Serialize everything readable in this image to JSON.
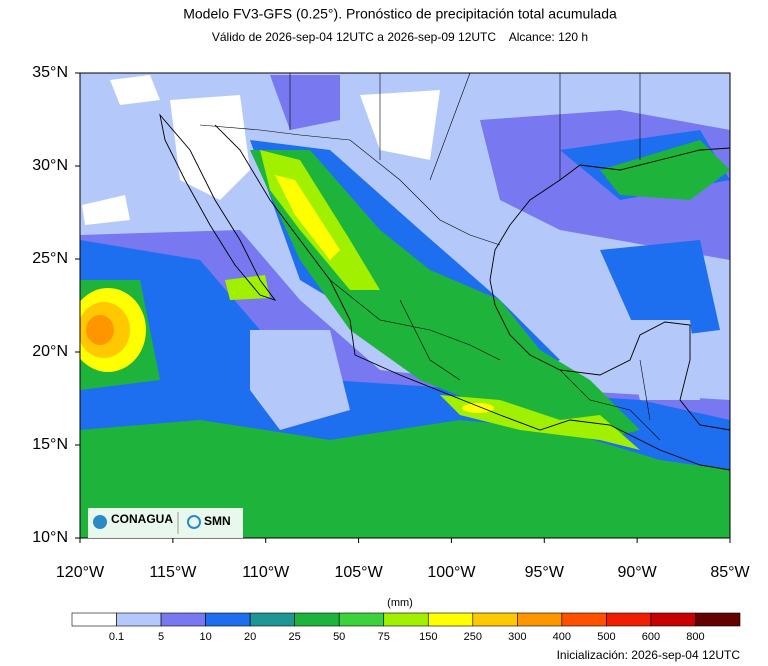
{
  "map": {
    "title": "Modelo FV3-GFS (0.25°). Pronóstico de precipitación total acumulada",
    "subtitle": "Válido de 2026-sep-04 12UTC a 2026-sep-09 12UTC    Alcance: 120 h",
    "xlim": [
      -120,
      -85
    ],
    "ylim": [
      10,
      35
    ],
    "lon_ticks": [
      {
        "value": -120,
        "label": "120°W"
      },
      {
        "value": -115,
        "label": "115°W"
      },
      {
        "value": -110,
        "label": "110°W"
      },
      {
        "value": -105,
        "label": "105°W"
      },
      {
        "value": -100,
        "label": "100°W"
      },
      {
        "value": -95,
        "label": "95°W"
      },
      {
        "value": -90,
        "label": "90°W"
      },
      {
        "value": -85,
        "label": "85°W"
      }
    ],
    "lat_ticks": [
      {
        "value": 10,
        "label": "10°N"
      },
      {
        "value": 15,
        "label": "15°N"
      },
      {
        "value": 20,
        "label": "20°N"
      },
      {
        "value": 25,
        "label": "25°N"
      },
      {
        "value": 30,
        "label": "30°N"
      },
      {
        "value": 35,
        "label": "35°N"
      }
    ],
    "logos": [
      "CONAGUA",
      "SMN"
    ]
  },
  "colorbar": {
    "unit": "(mm)",
    "levels": [
      0.1,
      5,
      10,
      20,
      25,
      50,
      75,
      150,
      250,
      300,
      400,
      500,
      600,
      800
    ],
    "colors": [
      "#ffffff",
      "#b4c8fa",
      "#7878f0",
      "#1e6ef0",
      "#1e9696",
      "#1eb43c",
      "#3cd23c",
      "#a0f000",
      "#ffff00",
      "#ffc800",
      "#ff9600",
      "#ff5000",
      "#f01e00",
      "#c80000",
      "#640000"
    ]
  },
  "footer": "Inicialización: 2026-sep-04 12UTC"
}
